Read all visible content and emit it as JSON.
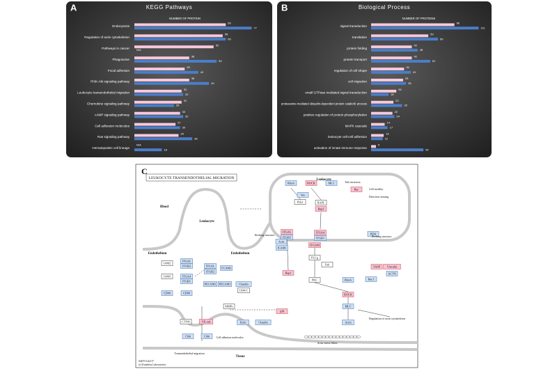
{
  "chart_data": [
    {
      "type": "bar",
      "orientation": "horizontal",
      "panel": "A",
      "title": "KEGG Pathways",
      "axis_label": "NUMBER OF PROTEIN",
      "categories": [
        "Endocytosis",
        "Regulation of actin cytoskeleton",
        "Pathways in cancer",
        "Phagosome",
        "Focal adhesion",
        "PI3K-Akt signaling pathway",
        "Leukocyte transendothelial migration",
        "Chemokine signaling pathway",
        "cAMP signaling pathway",
        "Cell adhesion molecules",
        "Ras signaling pathway",
        "Hematopoietic cell lineage"
      ],
      "series": [
        {
          "color": "#f6c9dc",
          "values": [
            60,
            58,
            52,
            36,
            33,
            36,
            31,
            31,
            30,
            27,
            29,
            null
          ],
          "value_labels": [
            "60",
            "58",
            "52",
            "36",
            "33",
            "36",
            "31",
            "31",
            "30",
            "27",
            "29",
            "N/A"
          ]
        },
        {
          "color": "#4a7ec9",
          "values": [
            77,
            60,
            null,
            54,
            42,
            49,
            32,
            26,
            32,
            30,
            38,
            18
          ],
          "value_labels": [
            "77",
            "60",
            "N/A",
            "54",
            "42",
            "49",
            "32",
            "26",
            "32",
            "30",
            "38",
            "18"
          ]
        }
      ],
      "xlim": [
        0,
        80
      ]
    },
    {
      "type": "bar",
      "orientation": "horizontal",
      "panel": "B",
      "title": "Biological Process",
      "axis_label": "NUMBER OF PROTEINS",
      "categories": [
        "signal transduction",
        "translation",
        "protein folding",
        "protein transport",
        "regulation of cell shape",
        "cell migration",
        "small GTPase mediated signal transduction",
        "proteasome-mediated ubiquitin-dependent protein catabolic process",
        "positive regulation of protein phosphorylation",
        "MAPK cascade",
        "leukocyte cell-cell adhesion",
        "activation of innate immune response"
      ],
      "series": [
        {
          "color": "#f6c9dc",
          "values": [
            86,
            59,
            42,
            42,
            34,
            33,
            26,
            23,
            22,
            14,
            13,
            5
          ]
        },
        {
          "color": "#4a7ec9",
          "values": [
            111,
            69,
            48,
            61,
            41,
            36,
            18,
            32,
            24,
            17,
            12,
            54
          ]
        }
      ],
      "xlim": [
        0,
        120
      ]
    }
  ],
  "diagram": {
    "panel": "C",
    "title": "LEUKOCYTE TRANSENDOTHELIAL MIGRATION",
    "regions": [
      "Leukocyte",
      "Blood",
      "Leukocyte",
      "Endothelium",
      "Endothelium",
      "Tissue"
    ],
    "nodes": [
      {
        "label": "RhoA",
        "color": "#cfe0f5"
      },
      {
        "label": "ROCK",
        "color": "#f7c3d3"
      },
      {
        "label": "MLC",
        "color": "#cfe0f5"
      },
      {
        "label": "Rac",
        "color": "#f7c3d3"
      },
      {
        "label": "Vav",
        "color": "#cfe0f5"
      },
      {
        "label": "Pyk2",
        "color": "#ffffff"
      },
      {
        "label": "RAPL",
        "color": "#ffffff"
      },
      {
        "label": "Rap1",
        "color": "#f7c3d3"
      },
      {
        "label": "PI3K",
        "color": "#cfe0f5"
      },
      {
        "label": "ITGAL",
        "color": "#f7c3d3"
      },
      {
        "label": "ITGB2",
        "color": "#cfe0f5"
      },
      {
        "label": "ITGA4",
        "color": "#f7c3d3"
      },
      {
        "label": "ITGB1",
        "color": "#cfe0f5"
      },
      {
        "label": "ITGAM",
        "color": "#f7c3d3"
      },
      {
        "label": "Actn",
        "color": "#cfe0f5"
      },
      {
        "label": "ICAM1",
        "color": "#cfe0f5"
      },
      {
        "label": "PLCg",
        "color": "#ffffff"
      },
      {
        "label": "Rap1",
        "color": "#f7c3d3"
      },
      {
        "label": "PKC",
        "color": "#ffffff"
      },
      {
        "label": "Fak",
        "color": "#ffffff"
      },
      {
        "label": "RhoA",
        "color": "#cfe0f5"
      },
      {
        "label": "ROCK",
        "color": "#f7c3d3"
      },
      {
        "label": "MLC",
        "color": "#cfe0f5"
      },
      {
        "label": "Actin",
        "color": "#cfe0f5"
      },
      {
        "label": "JAM2",
        "color": "#ffffff"
      },
      {
        "label": "JAM3",
        "color": "#ffffff"
      },
      {
        "label": "CD99",
        "color": "#cfe0f5"
      },
      {
        "label": "ITGAL",
        "color": "#cfe0f5"
      },
      {
        "label": "ITGB2",
        "color": "#cfe0f5"
      },
      {
        "label": "ITGA4",
        "color": "#cfe0f5"
      },
      {
        "label": "ITGB1",
        "color": "#cfe0f5"
      },
      {
        "label": "CD99",
        "color": "#cfe0f5"
      },
      {
        "label": "ITGAL",
        "color": "#cfe0f5"
      },
      {
        "label": "ITGB2",
        "color": "#cfe0f5"
      },
      {
        "label": "VCAM1",
        "color": "#cfe0f5"
      },
      {
        "label": "PECAM1",
        "color": "#cfe0f5"
      },
      {
        "label": "PECAM1",
        "color": "#cfe0f5"
      },
      {
        "label": "Claudin",
        "color": "#cfe0f5"
      },
      {
        "label": "JAM-C",
        "color": "#ffffff"
      },
      {
        "label": "p38",
        "color": "#f7c3d3"
      },
      {
        "label": "MMPs",
        "color": "#ffffff"
      },
      {
        "label": "CTNN",
        "color": "#ffffff"
      },
      {
        "label": "VE-cad",
        "color": "#f7c3d3"
      },
      {
        "label": "Ezrin",
        "color": "#cfe0f5"
      },
      {
        "label": "Claudin",
        "color": "#cfe0f5"
      },
      {
        "label": "Cldn",
        "color": "#cfe0f5"
      },
      {
        "label": "Cldn",
        "color": "#cfe0f5"
      },
      {
        "label": "VASP",
        "color": "#f7c3d3"
      },
      {
        "label": "Vinculin",
        "color": "#f7c3d3"
      },
      {
        "label": "ACTN",
        "color": "#cfe0f5"
      },
      {
        "label": "Rac1",
        "color": "#cfe0f5"
      }
    ],
    "captions": [
      "Tail retraction",
      "Cell motility",
      "Direction sensing",
      "Cell adhesion molecules",
      "Transendothelial migration",
      "Regulation of actin cytoskeleton",
      "Actin stress fibres",
      "Docking structure",
      "Docking structure"
    ],
    "footer": [
      "04670 3/24/17",
      "(c) Kanehisa Laboratories"
    ]
  }
}
